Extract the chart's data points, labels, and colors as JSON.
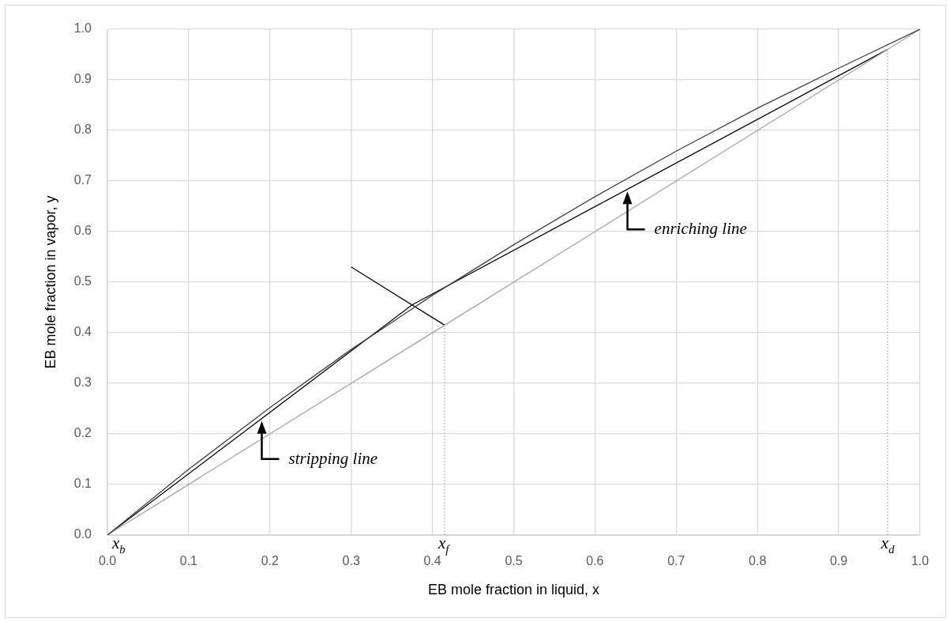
{
  "chart_data": {
    "type": "line",
    "xlabel": "EB mole fraction in liquid, x",
    "ylabel": "EB mole fraction in vapor, y",
    "xlim": [
      0,
      1
    ],
    "ylim": [
      0,
      1
    ],
    "xticks": [
      {
        "value": 0,
        "label": "0.0"
      },
      {
        "value": 0.1,
        "label": "0.1"
      },
      {
        "value": 0.2,
        "label": "0.2"
      },
      {
        "value": 0.3,
        "label": "0.3"
      },
      {
        "value": 0.4,
        "label": "0.4"
      },
      {
        "value": 0.5,
        "label": "0.5"
      },
      {
        "value": 0.6,
        "label": "0.6"
      },
      {
        "value": 0.7,
        "label": "0.7"
      },
      {
        "value": 0.8,
        "label": "0.8"
      },
      {
        "value": 0.9,
        "label": "0.9"
      },
      {
        "value": 1,
        "label": "1.0"
      }
    ],
    "yticks": [
      {
        "value": 0,
        "label": "0.0"
      },
      {
        "value": 0.1,
        "label": "0.1"
      },
      {
        "value": 0.2,
        "label": "0.2"
      },
      {
        "value": 0.3,
        "label": "0.3"
      },
      {
        "value": 0.4,
        "label": "0.4"
      },
      {
        "value": 0.5,
        "label": "0.5"
      },
      {
        "value": 0.6,
        "label": "0.6"
      },
      {
        "value": 0.7,
        "label": "0.7"
      },
      {
        "value": 0.8,
        "label": "0.8"
      },
      {
        "value": 0.9,
        "label": "0.9"
      },
      {
        "value": 1,
        "label": "1.0"
      }
    ],
    "grid": true,
    "legend": false,
    "marker": "none",
    "line_style": "solid",
    "series": [
      {
        "color": "#404040",
        "x": [
          0,
          0.1,
          0.2,
          0.3,
          0.4,
          0.5,
          0.6,
          0.7,
          0.8,
          0.9,
          1
        ],
        "values": [
          0,
          0.13,
          0.252,
          0.367,
          0.474,
          0.574,
          0.669,
          0.759,
          0.844,
          0.923,
          1
        ]
      },
      {
        "color": "#a6a6a6",
        "x": [
          0,
          1
        ],
        "values": [
          0,
          1
        ]
      },
      {
        "color": "#000000",
        "x": [
          0,
          0.375,
          0.96
        ],
        "values": [
          0,
          0.455,
          0.96
        ]
      },
      {
        "color": "#000000",
        "x": [
          0.3,
          0.415
        ],
        "values": [
          0.53,
          0.415
        ]
      }
    ],
    "ref_lines": [
      {
        "axis": "x",
        "value": 0.415,
        "label": "x$_{f}$",
        "color": "#a6a6a6",
        "line_style": "dotted"
      },
      {
        "axis": "x",
        "value": 0.96,
        "label": "x$_{d}$",
        "color": "#a6a6a6",
        "line_style": "dotted"
      }
    ],
    "annotations": [
      {
        "text": "x$_{b}$",
        "x": 0,
        "y": 0
      },
      {
        "text": "stripping line",
        "x": 0.19,
        "y": 0.23
      },
      {
        "text": "enriching line",
        "x": 0.64,
        "y": 0.684
      }
    ]
  }
}
